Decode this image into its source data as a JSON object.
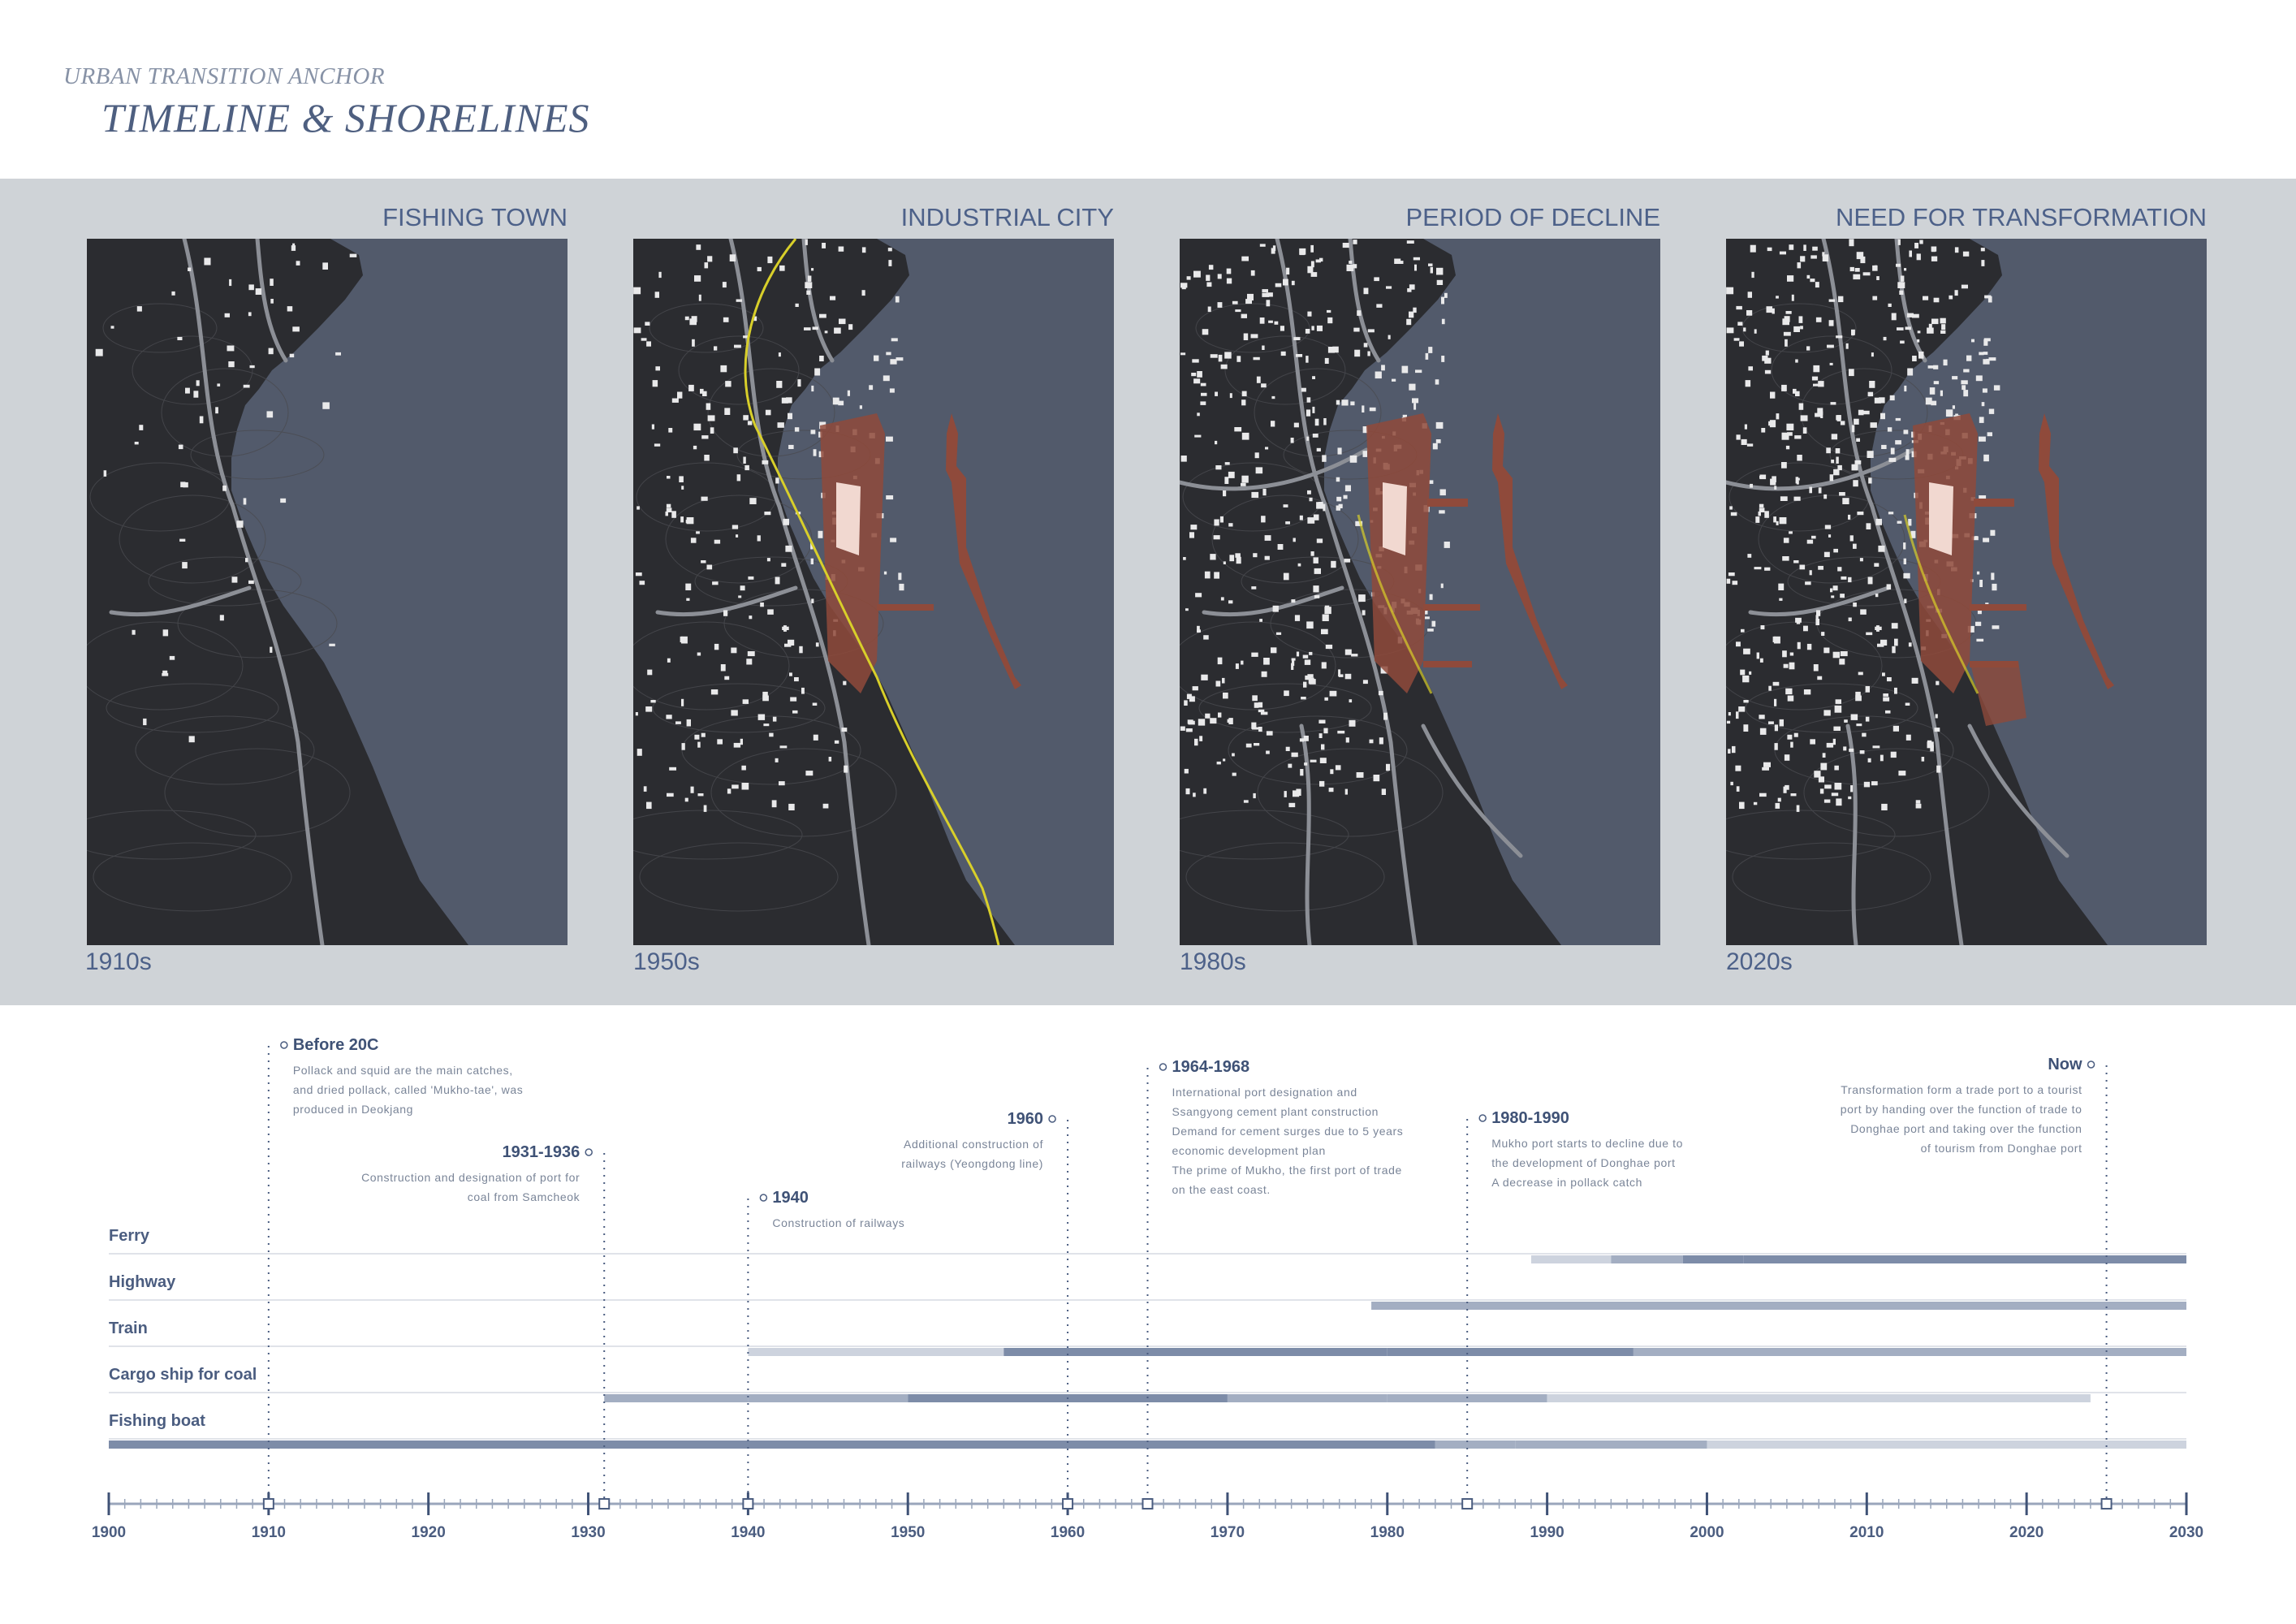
{
  "header": {
    "subtitle": "URBAN TRANSITION ANCHOR",
    "title": "TIMELINE & SHORELINES"
  },
  "panels": [
    {
      "label": "FISHING TOWN",
      "year": "1910s",
      "stage": 0
    },
    {
      "label": "INDUSTRIAL CITY",
      "year": "1950s",
      "stage": 1
    },
    {
      "label": "PERIOD OF DECLINE",
      "year": "1980s",
      "stage": 2
    },
    {
      "label": "NEED FOR TRANSFORMATION",
      "year": "2020s",
      "stage": 3
    }
  ],
  "colors": {
    "sea": "#525a6b",
    "land": "#2b2c30",
    "port": "#8f4a3b",
    "industrial": "#f1d8d0",
    "rail": "#d8cf2a",
    "bar_dark": "#7d8ca8",
    "bar_mid": "#a3aec2",
    "bar_light": "#cdd3de"
  },
  "timeline": {
    "axis": {
      "start": 1900,
      "end": 2030,
      "major_step": 10,
      "minor_step": 1
    },
    "ticks": [
      "1900",
      "1910",
      "1920",
      "1930",
      "1940",
      "1950",
      "1960",
      "1970",
      "1980",
      "1990",
      "2000",
      "2010",
      "2020",
      "2030"
    ],
    "events": [
      {
        "title": "Before 20C",
        "year": 1910,
        "side": "right",
        "lines": [
          "Pollack and squid are the main catches,",
          "and dried pollack, called 'Mukho-tae', was",
          "produced in Deokjang"
        ]
      },
      {
        "title": "1931-1936",
        "year": 1931,
        "side": "left",
        "lines": [
          "Construction and designation of port for",
          "coal from Samcheok"
        ]
      },
      {
        "title": "1940",
        "year": 1940,
        "side": "right",
        "lines": [
          "Construction of railways"
        ]
      },
      {
        "title": "1960",
        "year": 1960,
        "side": "left",
        "lines": [
          "Additional construction of",
          "railways (Yeongdong line)"
        ]
      },
      {
        "title": "1964-1968",
        "year": 1965,
        "side": "right",
        "lines": [
          "International port designation and",
          "Ssangyong cement plant construction",
          "Demand for cement surges due to 5 years",
          "economic development plan",
          "The prime of Mukho, the first port of trade",
          "on the east coast."
        ]
      },
      {
        "title": "1980-1990",
        "year": 1985,
        "side": "right",
        "lines": [
          "Mukho port starts to decline due to",
          "the development of Donghae port",
          "A decrease in pollack catch"
        ]
      },
      {
        "title": "Now",
        "year": 2025,
        "side": "left",
        "lines": [
          "Transformation form a trade port to a tourist",
          "port by handing over the function of trade to",
          "Donghae port and taking over the function",
          "of tourism from Donghae port"
        ]
      }
    ],
    "modes": [
      {
        "name": "Ferry",
        "segments": [
          {
            "from": 1989,
            "to": 1994,
            "shade": "light"
          },
          {
            "from": 1994,
            "to": 1998.5,
            "shade": "mid"
          },
          {
            "from": 1998.5,
            "to": 2002.3,
            "shade": "dark"
          },
          {
            "from": 2002.3,
            "to": 2030,
            "shade": "dark"
          }
        ]
      },
      {
        "name": "Highway",
        "segments": [
          {
            "from": 1979,
            "to": 2030,
            "shade": "mid"
          }
        ]
      },
      {
        "name": "Train",
        "segments": [
          {
            "from": 1940,
            "to": 1956,
            "shade": "light"
          },
          {
            "from": 1956,
            "to": 1980,
            "shade": "dark"
          },
          {
            "from": 1980,
            "to": 1995.4,
            "shade": "dark"
          },
          {
            "from": 1995.4,
            "to": 2030,
            "shade": "mid"
          }
        ]
      },
      {
        "name": "Cargo ship for coal",
        "segments": [
          {
            "from": 1931,
            "to": 1940,
            "shade": "mid"
          },
          {
            "from": 1940,
            "to": 1950,
            "shade": "mid"
          },
          {
            "from": 1950,
            "to": 1970,
            "shade": "dark"
          },
          {
            "from": 1970,
            "to": 1980,
            "shade": "mid"
          },
          {
            "from": 1980,
            "to": 1990,
            "shade": "mid"
          },
          {
            "from": 1990,
            "to": 2024,
            "shade": "light"
          }
        ]
      },
      {
        "name": "Fishing boat",
        "segments": [
          {
            "from": 1900,
            "to": 1983,
            "shade": "dark"
          },
          {
            "from": 1983,
            "to": 1988,
            "shade": "mid"
          },
          {
            "from": 1988,
            "to": 2000,
            "shade": "mid"
          },
          {
            "from": 2000,
            "to": 2030,
            "shade": "light"
          }
        ]
      }
    ]
  }
}
